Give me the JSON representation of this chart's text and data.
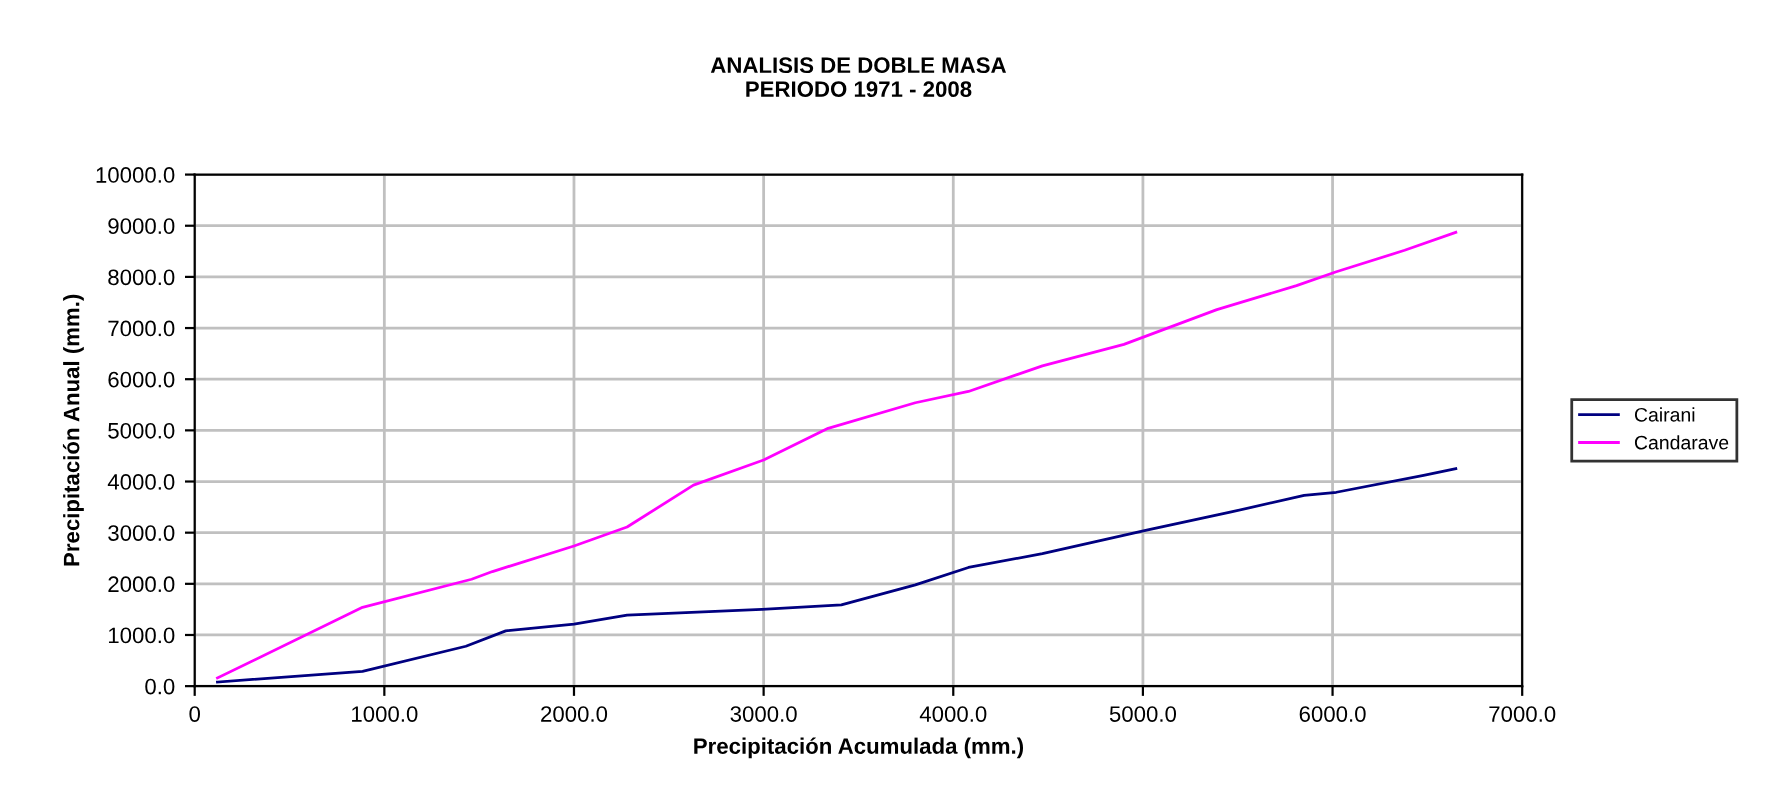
{
  "chart_data": {
    "type": "line",
    "title": "ANALISIS DE DOBLE MASA\nPERIODO 1971 - 2008",
    "xlabel": "Precipitación Acumulada (mm.)",
    "ylabel": "Precipitación Anual (mm.)",
    "series": [
      {
        "name": "Cairani",
        "color": "#000080",
        "x": [
          120,
          885,
          1430,
          1640,
          2000,
          2280,
          2990,
          3410,
          3800,
          4080,
          4470,
          5020,
          5460,
          5850,
          6020,
          6480,
          6650
        ],
        "values": [
          80,
          290,
          780,
          1080,
          1210,
          1390,
          1500,
          1590,
          1980,
          2320,
          2590,
          3050,
          3400,
          3730,
          3790,
          4120,
          4250
        ]
      },
      {
        "name": "Candarave",
        "color": "#ff00ff",
        "x": [
          120,
          885,
          1460,
          1570,
          2000,
          2280,
          2630,
          3000,
          3340,
          3800,
          4080,
          4470,
          4900,
          5390,
          5810,
          6020,
          6380,
          6650
        ],
        "values": [
          160,
          1540,
          2090,
          2240,
          2740,
          3110,
          3930,
          4420,
          5040,
          5540,
          5760,
          6260,
          6680,
          7360,
          7830,
          8100,
          8520,
          8870
        ]
      }
    ],
    "xlim": [
      0,
      7000
    ],
    "xticks": [
      0,
      {
        "value": 1000,
        "label": "1000.0"
      },
      {
        "value": 2000,
        "label": "2000.0"
      },
      {
        "value": 3000,
        "label": "3000.0"
      },
      {
        "value": 4000,
        "label": "4000.0"
      },
      {
        "value": 5000,
        "label": "5000.0"
      },
      {
        "value": 6000,
        "label": "6000.0"
      },
      {
        "value": 7000,
        "label": "7000.0"
      }
    ],
    "ylim": [
      0,
      10000
    ],
    "yticks": [
      {
        "value": 0,
        "label": "0.0"
      },
      {
        "value": 1000,
        "label": "1000.0"
      },
      {
        "value": 2000,
        "label": "2000.0"
      },
      {
        "value": 3000,
        "label": "3000.0"
      },
      {
        "value": 4000,
        "label": "4000.0"
      },
      {
        "value": 5000,
        "label": "5000.0"
      },
      {
        "value": 6000,
        "label": "6000.0"
      },
      {
        "value": 7000,
        "label": "7000.0"
      },
      {
        "value": 8000,
        "label": "8000.0"
      },
      {
        "value": 9000,
        "label": "9000.0"
      },
      {
        "value": 10000,
        "label": "10000.0"
      }
    ],
    "grid": true,
    "legend": "right",
    "marker": "none",
    "line_style": "solid"
  }
}
